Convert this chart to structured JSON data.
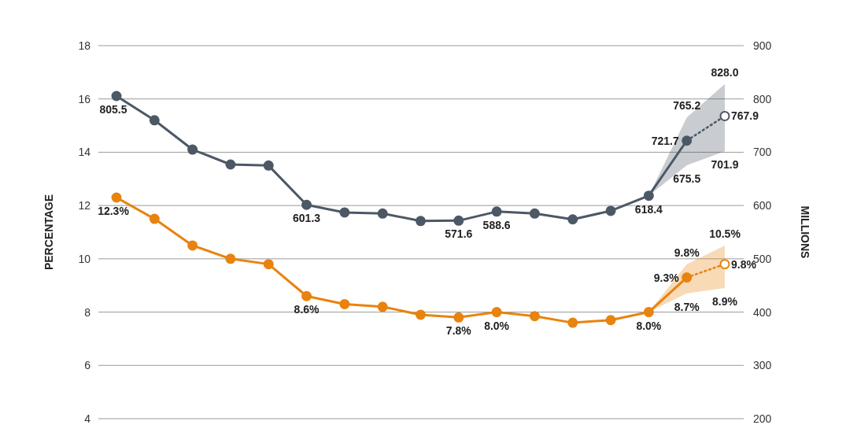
{
  "chart_data": {
    "type": "line",
    "ylabel": "PERCENTAGE",
    "y2label": "MILLIONS",
    "categories": [
      null,
      null,
      null,
      null,
      null,
      null,
      null,
      null,
      null,
      null,
      null,
      null,
      null,
      null,
      null,
      null,
      null
    ],
    "ylim": [
      4,
      18
    ],
    "yticks": [
      4,
      6,
      8,
      10,
      12,
      14,
      16,
      18
    ],
    "y2lim": [
      200,
      900
    ],
    "y2ticks": [
      200,
      300,
      400,
      500,
      600,
      700,
      800,
      900
    ],
    "grid": "y",
    "marker": "circle",
    "series": [
      {
        "color": "#4d5866",
        "axis": "y2",
        "line_style": "solid",
        "values": [
          805.5,
          760,
          705,
          677,
          675,
          601.3,
          587,
          585,
          571,
          571.6,
          588.6,
          585,
          574,
          590,
          618.4,
          721.7,
          null
        ],
        "value_labels": [
          "805.5",
          null,
          null,
          null,
          null,
          "601.3",
          null,
          null,
          null,
          "571.6",
          "588.6",
          null,
          null,
          null,
          "618.4",
          "721.7",
          null
        ]
      },
      {
        "color": "#4d5866",
        "axis": "y2",
        "line_style": "dotted",
        "values": [
          null,
          null,
          null,
          null,
          null,
          null,
          null,
          null,
          null,
          null,
          null,
          null,
          null,
          null,
          null,
          721.7,
          767.9
        ],
        "value_labels": [
          null,
          null,
          null,
          null,
          null,
          null,
          null,
          null,
          null,
          null,
          null,
          null,
          null,
          null,
          null,
          null,
          "767.9"
        ],
        "lower": [
          null,
          null,
          null,
          null,
          null,
          null,
          null,
          null,
          null,
          null,
          null,
          null,
          null,
          null,
          618.4,
          675.5,
          701.9
        ],
        "upper": [
          null,
          null,
          null,
          null,
          null,
          null,
          null,
          null,
          null,
          null,
          null,
          null,
          null,
          null,
          618.4,
          765.2,
          828.0
        ]
      },
      {
        "color": "#e8830f",
        "axis": "y",
        "line_style": "solid",
        "values": [
          12.3,
          11.5,
          10.5,
          10.0,
          9.8,
          8.6,
          8.3,
          8.2,
          7.9,
          7.8,
          8.0,
          7.85,
          7.6,
          7.7,
          8.0,
          9.3,
          null
        ],
        "value_labels": [
          "12.3%",
          null,
          null,
          null,
          null,
          "8.6%",
          null,
          null,
          null,
          "7.8%",
          "8.0%",
          null,
          null,
          null,
          "8.0%",
          "9.3%",
          null
        ]
      },
      {
        "color": "#e8830f",
        "axis": "y",
        "line_style": "dotted",
        "values": [
          null,
          null,
          null,
          null,
          null,
          null,
          null,
          null,
          null,
          null,
          null,
          null,
          null,
          null,
          null,
          9.3,
          9.8
        ],
        "value_labels": [
          null,
          null,
          null,
          null,
          null,
          null,
          null,
          null,
          null,
          null,
          null,
          null,
          null,
          null,
          null,
          null,
          "9.8%"
        ],
        "lower": [
          null,
          null,
          null,
          null,
          null,
          null,
          null,
          null,
          null,
          null,
          null,
          null,
          null,
          null,
          8.0,
          8.7,
          8.9
        ],
        "upper": [
          null,
          null,
          null,
          null,
          null,
          null,
          null,
          null,
          null,
          null,
          null,
          null,
          null,
          null,
          8.0,
          9.8,
          10.5
        ]
      }
    ],
    "annotations": [
      "765.2",
      "828.0",
      "675.5",
      "701.9",
      "9.8%",
      "10.5%",
      "8.7%",
      "8.9%"
    ]
  }
}
